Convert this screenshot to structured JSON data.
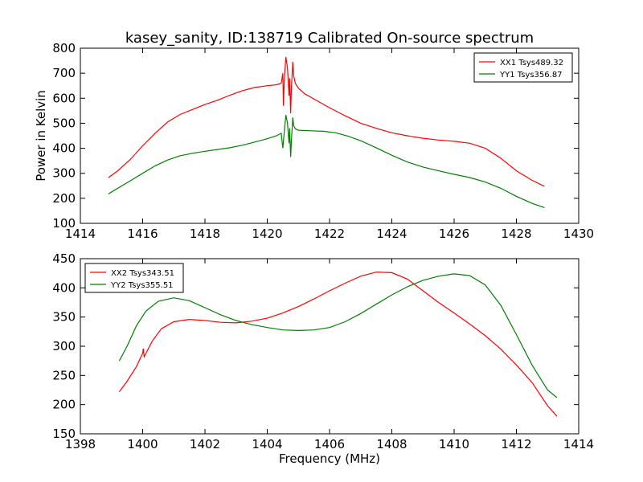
{
  "chart_data": [
    {
      "type": "line",
      "title": "kasey_sanity, ID:138719 Calibrated On-source spectrum",
      "xlabel": "",
      "ylabel": "Power in Kelvin",
      "xlim": [
        1414,
        1430
      ],
      "ylim": [
        100,
        800
      ],
      "xticks": [
        "1414",
        "1416",
        "1418",
        "1420",
        "1422",
        "1424",
        "1426",
        "1428",
        "1430"
      ],
      "yticks": [
        "100",
        "200",
        "300",
        "400",
        "500",
        "600",
        "700",
        "800"
      ],
      "legend": "top-right",
      "grid": false,
      "series": [
        {
          "name": "XX1 Tsys489.32",
          "color": "#ff0000",
          "points": [
            [
              1414.9,
              283
            ],
            [
              1415.2,
              310
            ],
            [
              1415.6,
              355
            ],
            [
              1416.0,
              410
            ],
            [
              1416.4,
              460
            ],
            [
              1416.8,
              505
            ],
            [
              1417.2,
              535
            ],
            [
              1417.6,
              555
            ],
            [
              1418.0,
              575
            ],
            [
              1418.4,
              592
            ],
            [
              1418.8,
              612
            ],
            [
              1419.2,
              630
            ],
            [
              1419.6,
              643
            ],
            [
              1420.0,
              650
            ],
            [
              1420.3,
              654
            ],
            [
              1420.45,
              660
            ],
            [
              1420.5,
              700
            ],
            [
              1420.52,
              570
            ],
            [
              1420.55,
              680
            ],
            [
              1420.6,
              765
            ],
            [
              1420.65,
              720
            ],
            [
              1420.7,
              610
            ],
            [
              1420.72,
              680
            ],
            [
              1420.75,
              540
            ],
            [
              1420.78,
              650
            ],
            [
              1420.82,
              745
            ],
            [
              1420.85,
              690
            ],
            [
              1420.9,
              660
            ],
            [
              1421.0,
              640
            ],
            [
              1421.2,
              618
            ],
            [
              1421.6,
              590
            ],
            [
              1422.0,
              562
            ],
            [
              1422.5,
              530
            ],
            [
              1423.0,
              500
            ],
            [
              1423.5,
              480
            ],
            [
              1424.0,
              462
            ],
            [
              1424.5,
              450
            ],
            [
              1425.0,
              440
            ],
            [
              1425.5,
              433
            ],
            [
              1426.0,
              428
            ],
            [
              1426.5,
              420
            ],
            [
              1427.0,
              400
            ],
            [
              1427.5,
              360
            ],
            [
              1428.0,
              310
            ],
            [
              1428.5,
              272
            ],
            [
              1428.9,
              248
            ]
          ]
        },
        {
          "name": "YY1 Tsys356.87",
          "color": "#008000",
          "points": [
            [
              1414.9,
              218
            ],
            [
              1415.2,
              240
            ],
            [
              1415.6,
              270
            ],
            [
              1416.0,
              300
            ],
            [
              1416.4,
              330
            ],
            [
              1416.8,
              353
            ],
            [
              1417.2,
              370
            ],
            [
              1417.6,
              380
            ],
            [
              1418.0,
              388
            ],
            [
              1418.4,
              395
            ],
            [
              1418.8,
              402
            ],
            [
              1419.2,
              412
            ],
            [
              1419.6,
              425
            ],
            [
              1420.0,
              438
            ],
            [
              1420.3,
              450
            ],
            [
              1420.45,
              460
            ],
            [
              1420.5,
              400
            ],
            [
              1420.55,
              470
            ],
            [
              1420.6,
              533
            ],
            [
              1420.65,
              500
            ],
            [
              1420.7,
              420
            ],
            [
              1420.72,
              480
            ],
            [
              1420.75,
              365
            ],
            [
              1420.78,
              440
            ],
            [
              1420.82,
              523
            ],
            [
              1420.85,
              490
            ],
            [
              1420.9,
              478
            ],
            [
              1421.0,
              472
            ],
            [
              1421.4,
              470
            ],
            [
              1421.8,
              468
            ],
            [
              1422.2,
              462
            ],
            [
              1422.6,
              448
            ],
            [
              1423.0,
              430
            ],
            [
              1423.5,
              402
            ],
            [
              1424.0,
              372
            ],
            [
              1424.5,
              345
            ],
            [
              1425.0,
              325
            ],
            [
              1425.5,
              310
            ],
            [
              1426.0,
              296
            ],
            [
              1426.5,
              283
            ],
            [
              1427.0,
              265
            ],
            [
              1427.5,
              240
            ],
            [
              1428.0,
              208
            ],
            [
              1428.5,
              180
            ],
            [
              1428.9,
              163
            ]
          ]
        }
      ]
    },
    {
      "type": "line",
      "title": "",
      "xlabel": "Frequency (MHz)",
      "ylabel": "",
      "xlim": [
        1398,
        1414
      ],
      "ylim": [
        150,
        450
      ],
      "xticks": [
        "1398",
        "1400",
        "1402",
        "1404",
        "1406",
        "1408",
        "1410",
        "1412",
        "1414"
      ],
      "yticks": [
        "150",
        "200",
        "250",
        "300",
        "350",
        "400",
        "450"
      ],
      "legend": "top-left",
      "grid": false,
      "series": [
        {
          "name": "XX2 Tsys343.51",
          "color": "#ff0000",
          "points": [
            [
              1399.25,
              222
            ],
            [
              1399.5,
              240
            ],
            [
              1399.8,
              265
            ],
            [
              1400.0,
              288
            ],
            [
              1400.02,
              296
            ],
            [
              1400.05,
              282
            ],
            [
              1400.3,
              308
            ],
            [
              1400.6,
              330
            ],
            [
              1401.0,
              342
            ],
            [
              1401.5,
              346
            ],
            [
              1402.0,
              344
            ],
            [
              1402.5,
              341
            ],
            [
              1403.0,
              340
            ],
            [
              1403.5,
              343
            ],
            [
              1404.0,
              348
            ],
            [
              1404.5,
              357
            ],
            [
              1405.0,
              368
            ],
            [
              1405.5,
              381
            ],
            [
              1406.0,
              395
            ],
            [
              1406.5,
              408
            ],
            [
              1407.0,
              420
            ],
            [
              1407.5,
              427
            ],
            [
              1408.0,
              426
            ],
            [
              1408.5,
              415
            ],
            [
              1409.0,
              395
            ],
            [
              1409.5,
              375
            ],
            [
              1410.0,
              357
            ],
            [
              1410.5,
              338
            ],
            [
              1411.0,
              318
            ],
            [
              1411.5,
              295
            ],
            [
              1412.0,
              268
            ],
            [
              1412.5,
              238
            ],
            [
              1413.0,
              198
            ],
            [
              1413.3,
              180
            ]
          ]
        },
        {
          "name": "YY2 Tsys355.51",
          "color": "#008000",
          "points": [
            [
              1399.25,
              275
            ],
            [
              1399.5,
              300
            ],
            [
              1399.8,
              335
            ],
            [
              1400.1,
              360
            ],
            [
              1400.5,
              377
            ],
            [
              1401.0,
              383
            ],
            [
              1401.5,
              378
            ],
            [
              1402.0,
              366
            ],
            [
              1402.5,
              354
            ],
            [
              1403.0,
              344
            ],
            [
              1403.5,
              337
            ],
            [
              1404.0,
              332
            ],
            [
              1404.5,
              328
            ],
            [
              1405.0,
              327
            ],
            [
              1405.5,
              328
            ],
            [
              1406.0,
              332
            ],
            [
              1406.5,
              342
            ],
            [
              1407.0,
              356
            ],
            [
              1407.5,
              372
            ],
            [
              1408.0,
              388
            ],
            [
              1408.5,
              402
            ],
            [
              1409.0,
              413
            ],
            [
              1409.5,
              420
            ],
            [
              1410.0,
              424
            ],
            [
              1410.5,
              421
            ],
            [
              1411.0,
              405
            ],
            [
              1411.5,
              370
            ],
            [
              1412.0,
              320
            ],
            [
              1412.5,
              268
            ],
            [
              1413.0,
              225
            ],
            [
              1413.3,
              212
            ]
          ]
        }
      ]
    }
  ]
}
